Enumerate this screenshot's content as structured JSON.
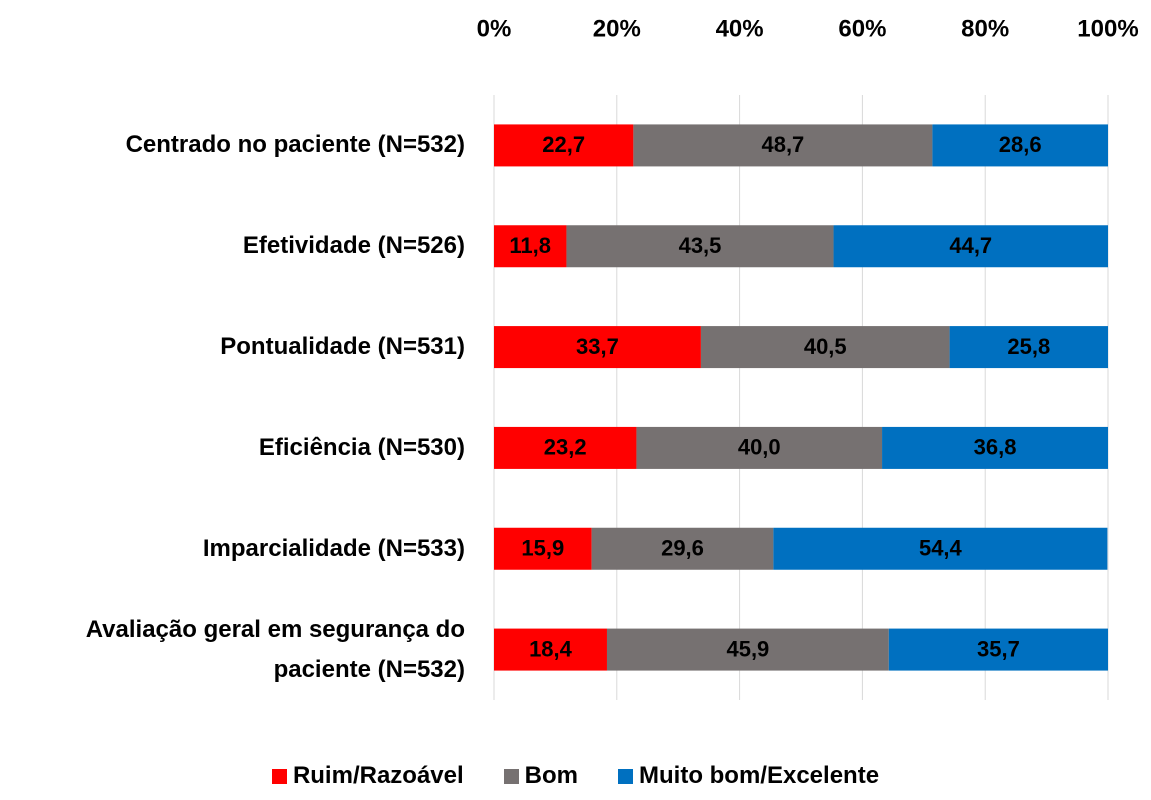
{
  "chart_data": {
    "type": "stacked_bar_horizontal",
    "categories": [
      "Centrado no paciente (N=532)",
      "Efetividade (N=526)",
      "Pontualidade (N=531)",
      "Eficiência (N=530)",
      "Imparcialidade (N=533)",
      "Avaliação geral em segurança do paciente (N=532)"
    ],
    "series": [
      {
        "name": "Ruim/Razoável",
        "color": "#ff0000",
        "values": [
          22.7,
          11.8,
          33.7,
          23.2,
          15.9,
          18.4
        ],
        "value_labels": [
          "22,7",
          "11,8",
          "33,7",
          "23,2",
          "15,9",
          "18,4"
        ]
      },
      {
        "name": "Bom",
        "color": "#767171",
        "values": [
          48.7,
          43.5,
          40.5,
          40.0,
          29.6,
          45.9
        ],
        "value_labels": [
          "48,7",
          "43,5",
          "40,5",
          "40,0",
          "29,6",
          "45,9"
        ]
      },
      {
        "name": "Muito bom/Excelente",
        "color": "#0070c0",
        "values": [
          28.6,
          44.7,
          25.8,
          36.8,
          54.4,
          35.7
        ],
        "value_labels": [
          "28,6",
          "44,7",
          "25,8",
          "36,8",
          "54,4",
          "35,7"
        ]
      }
    ],
    "xlim": [
      0,
      100
    ],
    "xticks": [
      {
        "value": 0,
        "label": "0%"
      },
      {
        "value": 20,
        "label": "20%"
      },
      {
        "value": 40,
        "label": "40%"
      },
      {
        "value": 60,
        "label": "60%"
      },
      {
        "value": 80,
        "label": "80%"
      },
      {
        "value": 100,
        "label": "100%"
      }
    ],
    "grid": true,
    "legend": "bottom"
  }
}
